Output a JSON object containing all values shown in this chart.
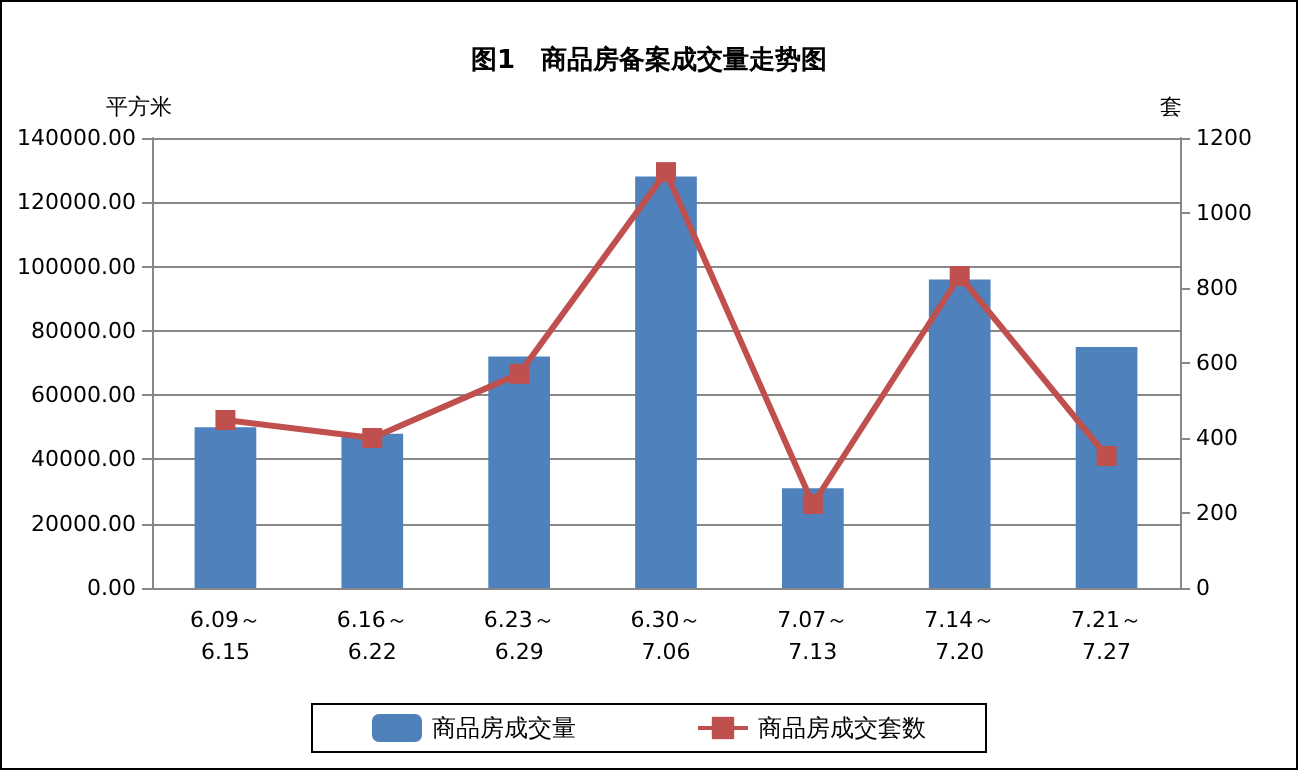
{
  "chart_data": {
    "type": "bar",
    "title": "图1　商品房备案成交量走势图",
    "ylabel": "平方米",
    "y2label": "套",
    "categories": [
      "6.09～\n6.15",
      "6.16～\n6.22",
      "6.23～\n6.29",
      "6.30～\n7.06",
      "7.07～\n7.13",
      "7.14～\n7.20",
      "7.21～\n7.27"
    ],
    "series": [
      {
        "name": "商品房成交量",
        "color": "#4f81bd",
        "values": [
          50000,
          48000,
          72000,
          128000,
          31000,
          96000,
          75000
        ]
      },
      {
        "name": "商品房成交套数",
        "type": "line",
        "axis": "y2",
        "color": "#c0504d",
        "marker": "square",
        "values": [
          448,
          400,
          571,
          1109,
          224,
          832,
          352
        ]
      }
    ],
    "ylim": [
      0,
      140000
    ],
    "yticks": [
      {
        "value": 0,
        "label": "0.00"
      },
      {
        "value": 20000,
        "label": "20000.00"
      },
      {
        "value": 40000,
        "label": "40000.00"
      },
      {
        "value": 60000,
        "label": "60000.00"
      },
      {
        "value": 80000,
        "label": "80000.00"
      },
      {
        "value": 100000,
        "label": "100000.00"
      },
      {
        "value": 120000,
        "label": "120000.00"
      },
      {
        "value": 140000,
        "label": "140000.00"
      }
    ],
    "y2lim": [
      0,
      1200
    ],
    "y2ticks": [
      0,
      200,
      400,
      600,
      800,
      1000,
      1200
    ],
    "grid": "y",
    "legend": "bottom"
  }
}
